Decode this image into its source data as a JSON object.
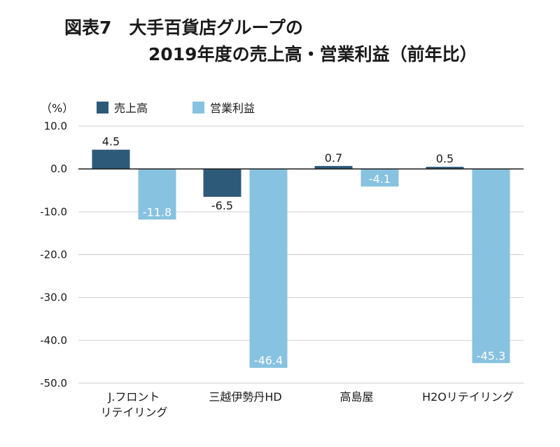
{
  "chart_data": {
    "type": "bar",
    "title_line1": "図表7　大手百貨店グループの",
    "title_line2": "2019年度の売上高・営業利益（前年比）",
    "ylabel": "（%）",
    "categories": [
      "J.フロント\nリテイリング",
      "三越伊勢丹HD",
      "高島屋",
      "H2Oリテイリング"
    ],
    "series": [
      {
        "name": "売上高",
        "color": "#2e5a7a",
        "values": [
          4.5,
          -6.5,
          0.7,
          0.5
        ],
        "labels": [
          "4.5",
          "-6.5",
          "0.7",
          "0.5"
        ]
      },
      {
        "name": "営業利益",
        "color": "#87c2e0",
        "values": [
          -11.8,
          -46.4,
          -4.1,
          -45.3
        ],
        "labels": [
          "-11.8",
          "-46.4",
          "-4.1",
          "-45.3"
        ]
      }
    ],
    "ylim": [
      -50,
      10
    ],
    "yticks": [
      "10.0",
      "0.0",
      "-10.0",
      "-20.0",
      "-30.0",
      "-40.0",
      "-50.0"
    ],
    "ytick_values": [
      10,
      0,
      -10,
      -20,
      -30,
      -40,
      -50
    ],
    "grid": true,
    "legend_position": "top"
  }
}
